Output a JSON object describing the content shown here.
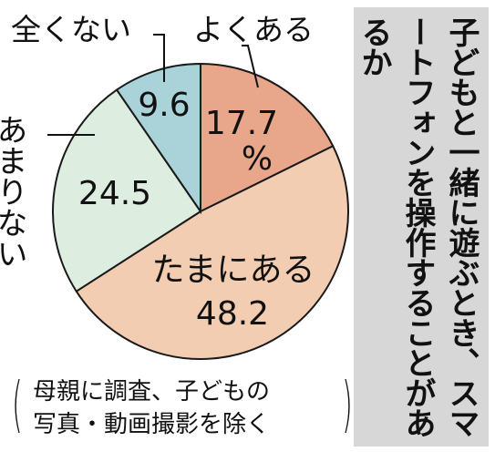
{
  "chart_data": {
    "type": "pie",
    "title": "子どもと一緒に遊ぶとき、スマートフォンを操作することがあるか",
    "note": {
      "open_paren": "(",
      "lines": [
        "母親に調査、子どもの",
        "写真・動画撮影を除く"
      ],
      "close_paren": ")"
    },
    "unit": "%",
    "start_angle_deg": 0,
    "direction": "clockwise",
    "slices": [
      {
        "label": "よくある",
        "value": 17.7,
        "value_text": "17.7",
        "color": "#e8a68a"
      },
      {
        "label": "たまにある",
        "value": 48.2,
        "value_text": "48.2",
        "color": "#f3cdb2"
      },
      {
        "label": "あまりない",
        "value": 24.5,
        "value_text": "24.5",
        "color": "#ddeddf"
      },
      {
        "label": "全くない",
        "value": 9.6,
        "value_text": "9.6",
        "color": "#a9d3d9"
      }
    ]
  }
}
